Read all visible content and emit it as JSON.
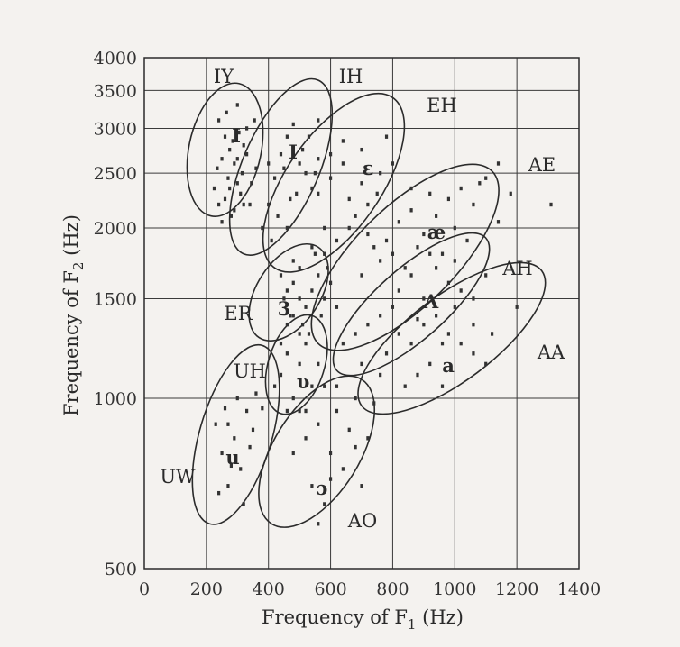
{
  "chart_data": {
    "type": "scatter",
    "xlabel": "Frequency of F",
    "xlabel_sub": "1",
    "xlabel_unit": " (Hz)",
    "ylabel": "Frequency of F",
    "ylabel_sub": "2",
    "ylabel_unit": " (Hz)",
    "xlim": [
      0,
      1400
    ],
    "ylim": [
      500,
      4000
    ],
    "yscale": "log",
    "xticks": [
      0,
      200,
      400,
      600,
      800,
      1000,
      1200,
      1400
    ],
    "xtick_labels": [
      "0",
      "200",
      "400",
      "600",
      "800",
      "1000",
      "1200",
      "1400"
    ],
    "yticks": [
      500,
      1000,
      1500,
      2000,
      2500,
      3000,
      3500,
      4000
    ],
    "ytick_labels": [
      "500",
      "1000",
      "1500",
      "2000",
      "2500",
      "3000",
      "3500",
      "4000"
    ],
    "grid": true,
    "regions": [
      {
        "name": "IY",
        "symbol": "I",
        "label": "IY",
        "center": [
          280,
          2500
        ],
        "points": [
          [
            240,
            3100
          ],
          [
            260,
            2900
          ],
          [
            275,
            2750
          ],
          [
            290,
            2600
          ],
          [
            300,
            2400
          ],
          [
            310,
            2300
          ],
          [
            320,
            2200
          ],
          [
            250,
            2650
          ],
          [
            270,
            2450
          ],
          [
            285,
            2850
          ],
          [
            305,
            2950
          ],
          [
            235,
            2550
          ],
          [
            260,
            2250
          ],
          [
            290,
            2150
          ],
          [
            315,
            2500
          ],
          [
            330,
            2700
          ],
          [
            345,
            2400
          ],
          [
            340,
            2200
          ],
          [
            225,
            2350
          ],
          [
            250,
            2050
          ],
          [
            275,
            2350
          ],
          [
            300,
            2650
          ],
          [
            330,
            3000
          ],
          [
            355,
            3100
          ],
          [
            265,
            3200
          ],
          [
            300,
            3300
          ],
          [
            320,
            2800
          ],
          [
            280,
            2100
          ],
          [
            240,
            2200
          ],
          [
            360,
            2550
          ]
        ]
      },
      {
        "name": "IH",
        "symbol": "I",
        "label": "IH",
        "center": [
          450,
          2400
        ],
        "points": [
          [
            400,
            2200
          ],
          [
            420,
            2450
          ],
          [
            440,
            2700
          ],
          [
            460,
            2900
          ],
          [
            480,
            3050
          ],
          [
            500,
            2600
          ],
          [
            520,
            2500
          ],
          [
            430,
            2100
          ],
          [
            460,
            2000
          ],
          [
            490,
            2300
          ],
          [
            510,
            2750
          ],
          [
            530,
            2900
          ],
          [
            450,
            2550
          ],
          [
            470,
            2250
          ],
          [
            400,
            2600
          ],
          [
            540,
            2350
          ],
          [
            560,
            2650
          ],
          [
            380,
            2000
          ],
          [
            410,
            1900
          ],
          [
            560,
            3100
          ]
        ]
      },
      {
        "name": "EH",
        "symbol": "ε",
        "label": "EH",
        "center": [
          620,
          2200
        ],
        "points": [
          [
            560,
            2300
          ],
          [
            600,
            2450
          ],
          [
            640,
            2600
          ],
          [
            660,
            2250
          ],
          [
            700,
            2400
          ],
          [
            580,
            2000
          ],
          [
            620,
            1900
          ],
          [
            680,
            2100
          ],
          [
            720,
            2200
          ],
          [
            760,
            2500
          ],
          [
            780,
            2900
          ],
          [
            600,
            2700
          ],
          [
            640,
            2850
          ],
          [
            700,
            2750
          ],
          [
            550,
            2500
          ],
          [
            660,
            2000
          ],
          [
            720,
            1950
          ],
          [
            750,
            2300
          ],
          [
            800,
            2600
          ],
          [
            580,
            1800
          ]
        ]
      },
      {
        "name": "AE",
        "symbol": "æ",
        "label": "AE",
        "center": [
          900,
          2050
        ],
        "points": [
          [
            780,
            1900
          ],
          [
            820,
            2050
          ],
          [
            860,
            2150
          ],
          [
            900,
            1950
          ],
          [
            940,
            2100
          ],
          [
            980,
            2250
          ],
          [
            1020,
            2350
          ],
          [
            1060,
            2200
          ],
          [
            1100,
            2450
          ],
          [
            1140,
            2600
          ],
          [
            760,
            1750
          ],
          [
            800,
            1800
          ],
          [
            840,
            1700
          ],
          [
            880,
            1850
          ],
          [
            920,
            2300
          ],
          [
            960,
            1800
          ],
          [
            1000,
            2000
          ],
          [
            1040,
            1900
          ],
          [
            1080,
            2400
          ],
          [
            1140,
            2050
          ],
          [
            700,
            1650
          ],
          [
            740,
            1850
          ],
          [
            1180,
            2300
          ],
          [
            1310,
            2200
          ],
          [
            860,
            2350
          ]
        ]
      },
      {
        "name": "AH",
        "symbol": "Λ",
        "label": "AH",
        "center": [
          950,
          1650
        ],
        "points": [
          [
            820,
            1550
          ],
          [
            860,
            1650
          ],
          [
            900,
            1500
          ],
          [
            940,
            1700
          ],
          [
            980,
            1600
          ],
          [
            1020,
            1550
          ],
          [
            1060,
            1500
          ],
          [
            760,
            1400
          ],
          [
            800,
            1450
          ],
          [
            720,
            1350
          ],
          [
            680,
            1300
          ],
          [
            880,
            1380
          ],
          [
            920,
            1800
          ],
          [
            1000,
            1750
          ],
          [
            1100,
            1650
          ],
          [
            640,
            1250
          ]
        ]
      },
      {
        "name": "ER",
        "symbol": "3",
        "label": "ER",
        "center": [
          520,
          1550
        ],
        "points": [
          [
            450,
            1500
          ],
          [
            480,
            1600
          ],
          [
            500,
            1700
          ],
          [
            520,
            1450
          ],
          [
            540,
            1550
          ],
          [
            560,
            1650
          ],
          [
            470,
            1400
          ],
          [
            510,
            1350
          ],
          [
            550,
            1800
          ],
          [
            580,
            1500
          ],
          [
            440,
            1650
          ],
          [
            600,
            1600
          ],
          [
            480,
            1750
          ],
          [
            530,
            1300
          ],
          [
            570,
            1400
          ],
          [
            460,
            1550
          ],
          [
            590,
            1700
          ],
          [
            500,
            1500
          ],
          [
            620,
            1450
          ],
          [
            540,
            1850
          ]
        ]
      },
      {
        "name": "AA",
        "symbol": "a",
        "label": "AA",
        "center": [
          1000,
          1300
        ],
        "points": [
          [
            780,
            1200
          ],
          [
            820,
            1300
          ],
          [
            860,
            1250
          ],
          [
            900,
            1350
          ],
          [
            940,
            1400
          ],
          [
            980,
            1300
          ],
          [
            1020,
            1250
          ],
          [
            1060,
            1200
          ],
          [
            1100,
            1150
          ],
          [
            880,
            1100
          ],
          [
            920,
            1150
          ],
          [
            960,
            1050
          ],
          [
            1000,
            1450
          ],
          [
            1060,
            1350
          ],
          [
            840,
            1050
          ],
          [
            760,
            1100
          ],
          [
            1120,
            1300
          ],
          [
            1200,
            1450
          ],
          [
            700,
            1150
          ],
          [
            960,
            1250
          ]
        ]
      },
      {
        "name": "UH",
        "symbol": "υ",
        "label": "UH",
        "center": [
          480,
          1150
        ],
        "points": [
          [
            440,
            1100
          ],
          [
            460,
            1200
          ],
          [
            480,
            1000
          ],
          [
            500,
            1150
          ],
          [
            520,
            1250
          ],
          [
            540,
            1050
          ],
          [
            460,
            950
          ],
          [
            500,
            1300
          ],
          [
            420,
            1050
          ],
          [
            560,
            1150
          ],
          [
            480,
            1400
          ],
          [
            440,
            1250
          ],
          [
            520,
            950
          ],
          [
            580,
            1050
          ],
          [
            460,
            1350
          ]
        ]
      },
      {
        "name": "UW",
        "symbol": "u",
        "label": "UW",
        "center": [
          300,
          850
        ],
        "points": [
          [
            250,
            800
          ],
          [
            270,
            900
          ],
          [
            290,
            850
          ],
          [
            310,
            750
          ],
          [
            330,
            950
          ],
          [
            350,
            880
          ],
          [
            270,
            700
          ],
          [
            240,
            680
          ],
          [
            300,
            1000
          ],
          [
            320,
            650
          ],
          [
            260,
            960
          ],
          [
            340,
            820
          ],
          [
            360,
            1020
          ],
          [
            280,
            760
          ],
          [
            230,
            900
          ],
          [
            380,
            960
          ]
        ]
      },
      {
        "name": "AO",
        "symbol": "ɔ",
        "label": "AO",
        "center": [
          600,
          800
        ],
        "points": [
          [
            520,
            850
          ],
          [
            560,
            900
          ],
          [
            600,
            800
          ],
          [
            640,
            750
          ],
          [
            680,
            820
          ],
          [
            540,
            700
          ],
          [
            580,
            650
          ],
          [
            620,
            950
          ],
          [
            660,
            880
          ],
          [
            500,
            950
          ],
          [
            720,
            850
          ],
          [
            700,
            700
          ],
          [
            560,
            600
          ],
          [
            620,
            1050
          ],
          [
            680,
            1000
          ],
          [
            740,
            980
          ],
          [
            480,
            800
          ],
          [
            600,
            720
          ]
        ]
      }
    ]
  }
}
